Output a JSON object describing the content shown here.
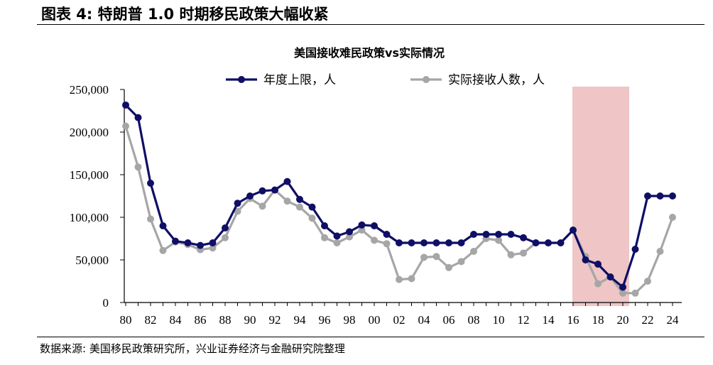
{
  "figure_title": "图表 4:  特朗普 1.0 时期移民政策大幅收紧",
  "source_note": "数据来源:  美国移民政策研究所，兴业证券经济与金融研究院整理",
  "chart_data": {
    "type": "line",
    "title": "美国接收难民政策vs实际情况",
    "xlabel": "",
    "ylabel": "",
    "x": [
      1980,
      1981,
      1982,
      1983,
      1984,
      1985,
      1986,
      1987,
      1988,
      1989,
      1990,
      1991,
      1992,
      1993,
      1994,
      1995,
      1996,
      1997,
      1998,
      1999,
      2000,
      2001,
      2002,
      2003,
      2004,
      2005,
      2006,
      2007,
      2008,
      2009,
      2010,
      2011,
      2012,
      2013,
      2014,
      2015,
      2016,
      2017,
      2018,
      2019,
      2020,
      2021,
      2022,
      2023,
      2024
    ],
    "x_tick_labels": [
      "80",
      "82",
      "84",
      "86",
      "88",
      "90",
      "92",
      "94",
      "96",
      "98",
      "00",
      "02",
      "04",
      "06",
      "08",
      "10",
      "12",
      "14",
      "16",
      "18",
      "20",
      "22",
      "24"
    ],
    "y_ticks": [
      0,
      50000,
      100000,
      150000,
      200000,
      250000
    ],
    "y_tick_labels": [
      "0",
      "50,000",
      "100,000",
      "150,000",
      "200,000",
      "250,000"
    ],
    "ylim": [
      0,
      250000
    ],
    "legend_position": "top",
    "highlight_region": {
      "x_start": 2016,
      "x_end": 2020,
      "color": "#efc5c5"
    },
    "series": [
      {
        "name": "年度上限，人",
        "color": "#0f0f66",
        "values": [
          231700,
          217000,
          140000,
          90000,
          72000,
          70000,
          67000,
          70000,
          87500,
          116500,
          125000,
          131000,
          132000,
          142000,
          121000,
          112000,
          90000,
          78000,
          83000,
          91000,
          90000,
          80000,
          70000,
          70000,
          70000,
          70000,
          70000,
          70000,
          80000,
          80000,
          80000,
          80000,
          76000,
          70000,
          70000,
          70000,
          85000,
          50000,
          45000,
          30000,
          18000,
          62500,
          125000,
          125000,
          125000
        ]
      },
      {
        "name": "实际接收人数，人",
        "color": "#a6a6a6",
        "values": [
          207000,
          159000,
          98000,
          61000,
          71000,
          68000,
          62000,
          64000,
          76000,
          107000,
          122000,
          113000,
          132000,
          119000,
          112000,
          99000,
          76000,
          70000,
          77000,
          85000,
          73000,
          69000,
          27000,
          28000,
          53000,
          54000,
          41000,
          48000,
          60000,
          75000,
          73000,
          56000,
          58000,
          70000,
          70000,
          70000,
          85000,
          54000,
          22000,
          30000,
          11000,
          11000,
          25000,
          60000,
          100000
        ]
      }
    ]
  }
}
